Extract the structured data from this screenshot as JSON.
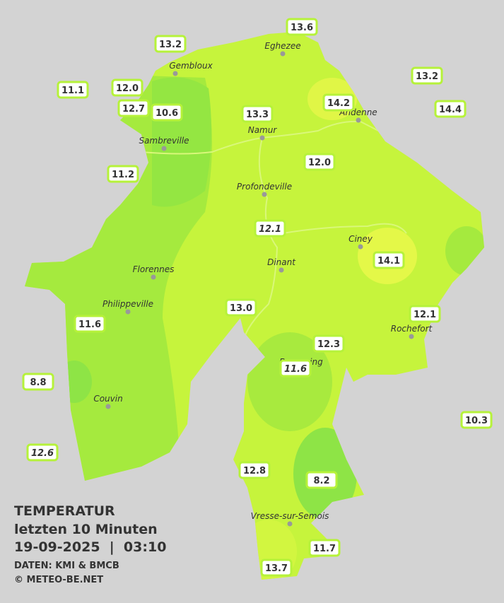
{
  "stations": [
    {
      "value": "13.6"
    },
    {
      "value": "13.2"
    },
    {
      "value": "11.1"
    },
    {
      "value": "12.0"
    },
    {
      "value": "12.7"
    },
    {
      "value": "10.6"
    },
    {
      "value": "13.3"
    },
    {
      "value": "14.2"
    },
    {
      "value": "13.2"
    },
    {
      "value": "14.4"
    },
    {
      "value": "11.2"
    },
    {
      "value": "12.0"
    },
    {
      "value": "12.1",
      "italic": true
    },
    {
      "value": "14.1"
    },
    {
      "value": "13.0"
    },
    {
      "value": "12.1"
    },
    {
      "value": "11.6"
    },
    {
      "value": "12.3"
    },
    {
      "value": "11.6",
      "italic": true
    },
    {
      "value": "8.8"
    },
    {
      "value": "10.3"
    },
    {
      "value": "12.6",
      "italic": true
    },
    {
      "value": "12.8"
    },
    {
      "value": "8.2"
    },
    {
      "value": "11.7"
    },
    {
      "value": "13.7"
    }
  ],
  "cities": [
    "Eghezee",
    "Gembloux",
    "Andenne",
    "Namur",
    "Sambreville",
    "Profondeville",
    "Ciney",
    "Dinant",
    "Florennes",
    "Philippeville",
    "Rochefort",
    "Beauraing",
    "Couvin",
    "Vresse-sur-Semois"
  ],
  "legend": {
    "title": "TEMPERATUR",
    "subtitle": "letzten 10 Minuten",
    "datetime": "19-09-2025  |  03:10",
    "source": "DATEN: KMI & BMCB",
    "credit": "© METEO-BE.NET"
  }
}
